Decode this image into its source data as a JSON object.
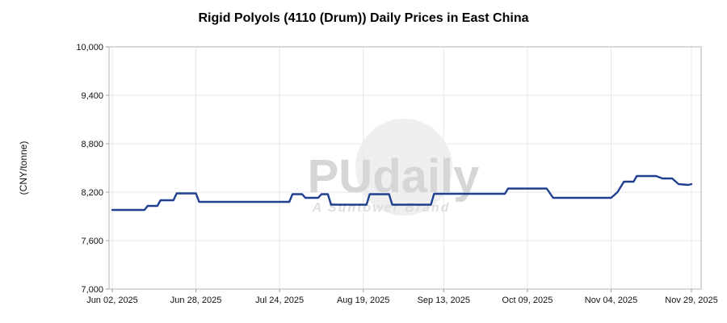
{
  "chart_data": {
    "type": "line",
    "title": "Rigid Polyols (4110 (Drum)) Daily Prices in East China",
    "xlabel": "",
    "ylabel": "(CNY/tonne)",
    "ylim": [
      7000,
      10000
    ],
    "y_ticks": [
      7000,
      7600,
      8200,
      8800,
      9400,
      10000
    ],
    "x_unit": "days since Jun 02, 2025",
    "x_domain_days": [
      -1,
      183
    ],
    "x_ticks": [
      {
        "day": 0,
        "label": "Jun 02, 2025"
      },
      {
        "day": 26,
        "label": "Jun 28, 2025"
      },
      {
        "day": 52,
        "label": "Jul 24, 2025"
      },
      {
        "day": 78,
        "label": "Aug 19, 2025"
      },
      {
        "day": 103,
        "label": "Sep 13, 2025"
      },
      {
        "day": 129,
        "label": "Oct 09, 2025"
      },
      {
        "day": 155,
        "label": "Nov 04, 2025"
      },
      {
        "day": 180,
        "label": "Nov 29, 2025"
      }
    ],
    "grid": true,
    "legend": "none",
    "series": [
      {
        "color": "#1f3f8f",
        "points": [
          [
            0,
            7980
          ],
          [
            10,
            7980
          ],
          [
            11,
            8030
          ],
          [
            14,
            8030
          ],
          [
            15,
            8100
          ],
          [
            19,
            8100
          ],
          [
            20,
            8185
          ],
          [
            26,
            8185
          ],
          [
            27,
            8080
          ],
          [
            55,
            8080
          ],
          [
            56,
            8175
          ],
          [
            59,
            8175
          ],
          [
            60,
            8130
          ],
          [
            64,
            8130
          ],
          [
            65,
            8175
          ],
          [
            67,
            8175
          ],
          [
            68,
            8045
          ],
          [
            79,
            8045
          ],
          [
            80,
            8175
          ],
          [
            86,
            8175
          ],
          [
            87,
            8045
          ],
          [
            99,
            8045
          ],
          [
            100,
            8180
          ],
          [
            122,
            8180
          ],
          [
            123,
            8245
          ],
          [
            135,
            8245
          ],
          [
            137,
            8130
          ],
          [
            155,
            8130
          ],
          [
            157,
            8200
          ],
          [
            159,
            8330
          ],
          [
            162,
            8330
          ],
          [
            163,
            8400
          ],
          [
            169,
            8400
          ],
          [
            171,
            8370
          ],
          [
            174,
            8370
          ],
          [
            176,
            8300
          ],
          [
            179,
            8290
          ],
          [
            180,
            8300
          ]
        ]
      }
    ]
  },
  "watermark": {
    "text": "PUdaily",
    "subtext": "A Suntower Brand"
  },
  "colors": {
    "line": "#1f3f8f",
    "grid": "#e7e7e7",
    "plot_border": "#b5b5b5",
    "tick": "#999999",
    "watermark_text": "#d6d6d6"
  }
}
